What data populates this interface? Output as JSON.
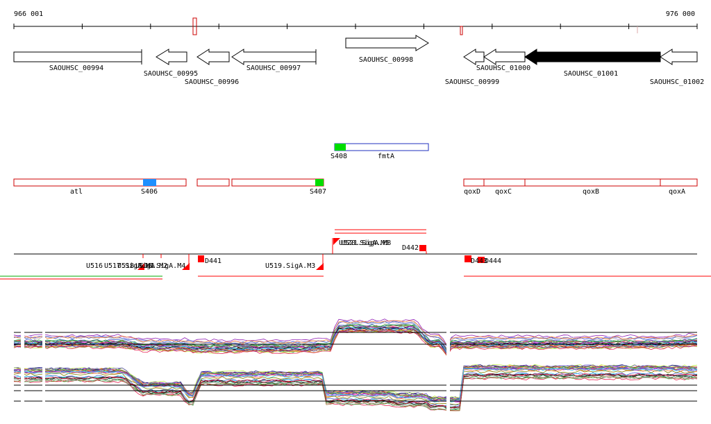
{
  "coordinates": {
    "start": "966 001",
    "end": "976 000"
  },
  "genes": [
    {
      "id": "SAOUHSC_00994",
      "strand": "+",
      "fill": "white",
      "arrow": false
    },
    {
      "id": "SAOUHSC_00995",
      "strand": "-",
      "fill": "white",
      "arrow": true
    },
    {
      "id": "SAOUHSC_00996",
      "strand": "-",
      "fill": "white",
      "arrow": true
    },
    {
      "id": "SAOUHSC_00997",
      "strand": "-",
      "fill": "white",
      "arrow": true
    },
    {
      "id": "SAOUHSC_00998",
      "strand": "+",
      "fill": "white",
      "arrow": true
    },
    {
      "id": "SAOUHSC_00999",
      "strand": "-",
      "fill": "white",
      "arrow": true
    },
    {
      "id": "SAOUHSC_01000",
      "strand": "-",
      "fill": "white",
      "arrow": true
    },
    {
      "id": "SAOUHSC_01001",
      "strand": "-",
      "fill": "black",
      "arrow": true
    },
    {
      "id": "SAOUHSC_01002",
      "strand": "-",
      "fill": "white",
      "arrow": true
    }
  ],
  "operon_top": {
    "label": "fmtA",
    "start_label": "S408",
    "color": "#1f2fbf"
  },
  "operons": [
    {
      "name": "atl",
      "site": "S406",
      "site_color": "#1e90ff"
    },
    {
      "name": "",
      "site": "S407",
      "site_color": "#00dd00"
    },
    {
      "name": "qoxD"
    },
    {
      "name": "qoxC"
    },
    {
      "name": "qoxB"
    },
    {
      "name": "qoxA"
    }
  ],
  "features": {
    "labels": [
      "U516",
      "U517.SigA.M1",
      "U518.SigA.M2",
      "U518.SigA.M4",
      "D441",
      "U519.SigA.M3",
      "U520.SigA.M5",
      "U521.SigA.M8",
      "D442",
      "D443",
      "D444"
    ]
  },
  "colors": {
    "gene_stroke": "#000000",
    "operon_stroke": "#cc0000",
    "feature": "#ff0000"
  }
}
